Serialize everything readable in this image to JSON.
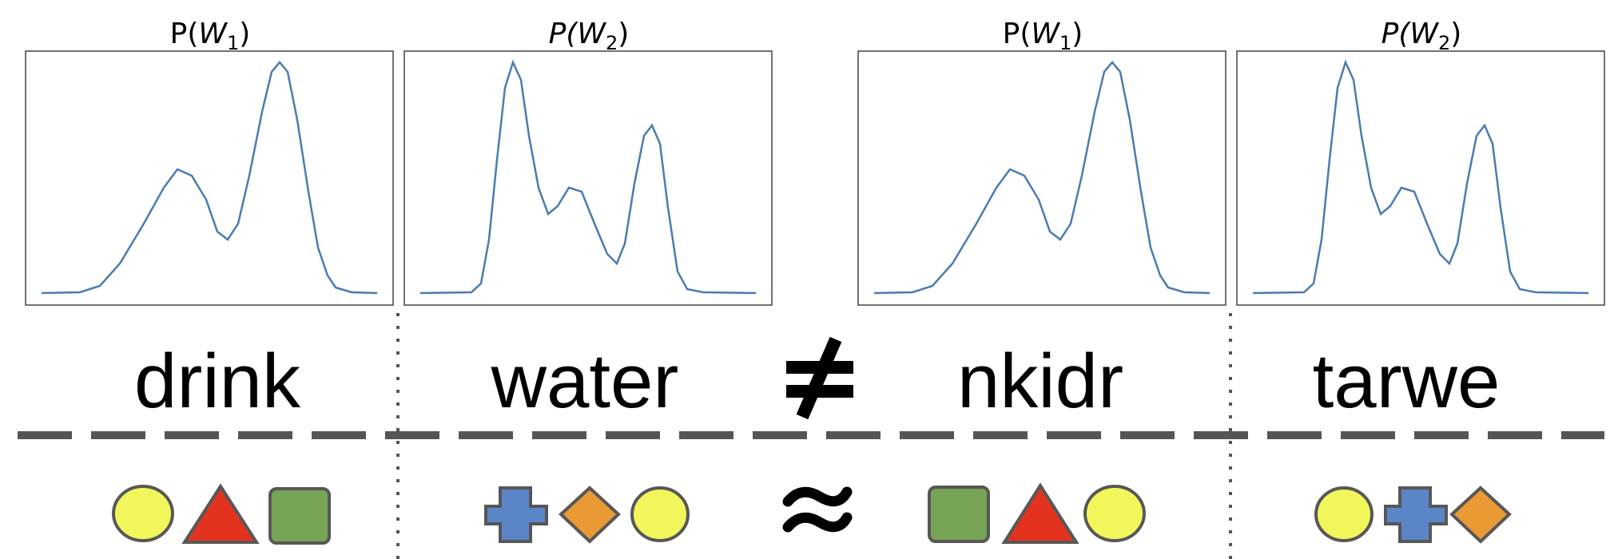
{
  "panels": [
    {
      "title_prefix": "P(",
      "title_var": "W",
      "title_sub": "1",
      "title_suffix": ")",
      "italic_p": false,
      "distribution": "dist-a"
    },
    {
      "title_prefix": "P(",
      "title_var": "W",
      "title_sub": "2",
      "title_suffix": ")",
      "italic_p": true,
      "distribution": "dist-b"
    },
    {
      "title_prefix": "P(",
      "title_var": "W",
      "title_sub": "1",
      "title_suffix": ")",
      "italic_p": false,
      "distribution": "dist-a"
    },
    {
      "title_prefix": "P(",
      "title_var": "W",
      "title_sub": "2",
      "title_suffix": ")",
      "italic_p": true,
      "distribution": "dist-b"
    }
  ],
  "words": [
    "drink",
    "water",
    "nkidr",
    "tarwe"
  ],
  "relation_top": "≠",
  "relation_bottom": "≈",
  "shape_groups": [
    [
      "circle-yellow",
      "triangle-red",
      "square-green"
    ],
    [
      "cross-blue",
      "diamond-orange",
      "circle-yellow"
    ],
    [
      "square-green",
      "triangle-red",
      "circle-yellow"
    ],
    [
      "circle-yellow",
      "cross-blue",
      "diamond-orange"
    ]
  ],
  "colors": {
    "curve": "#4a7cb0",
    "yellow": "#f1f75a",
    "red": "#e3331f",
    "green": "#78a455",
    "blue": "#5a86c8",
    "orange": "#e99a35",
    "shape_stroke": "#575757",
    "dash_line": "#555555"
  }
}
